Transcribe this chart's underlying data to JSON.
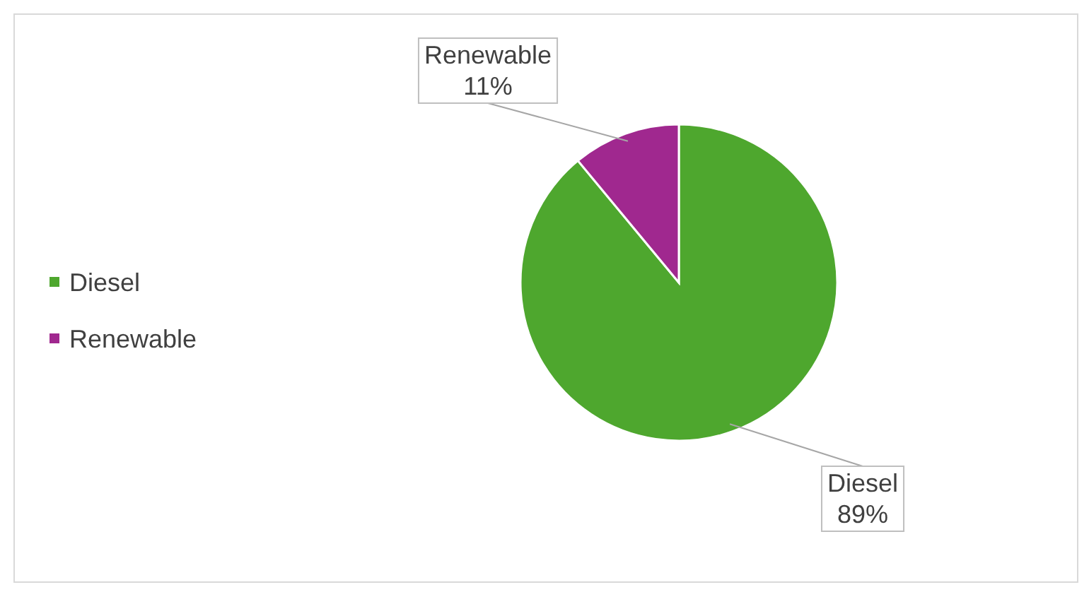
{
  "chart_data": {
    "type": "pie",
    "categories": [
      "Diesel",
      "Renewable"
    ],
    "values": [
      89,
      11
    ],
    "colors": [
      "#4ea72e",
      "#a0288f"
    ],
    "value_labels": [
      "89%",
      "11%"
    ],
    "legend": "left"
  }
}
